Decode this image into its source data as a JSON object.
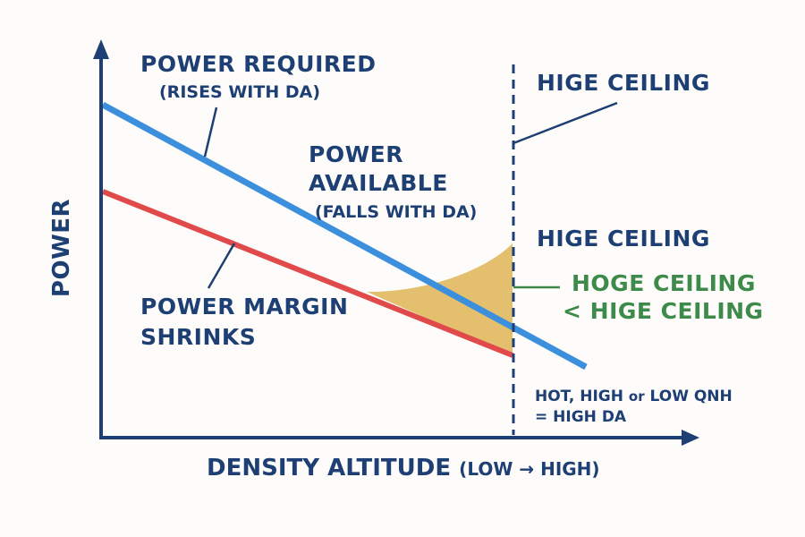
{
  "axes": {
    "y_label": "POWER",
    "x_label": "DENSITY ALTITUDE",
    "x_label_paren": "(LOW → HIGH)"
  },
  "labels": {
    "power_required_title": "POWER REQUIRED",
    "power_required_note": "(RISES WITH DA)",
    "power_available_line1": "POWER",
    "power_available_line2": "AVAILABLE",
    "power_available_note": "(FALLS WITH DA)",
    "power_margin_line1": "POWER MARGIN",
    "power_margin_line2": "SHRINKS",
    "hige_ceiling_top": "HIGE CEILING",
    "hige_ceiling_mid": "HIGE CEILING",
    "hoge_line1": "HOGE CEILING",
    "hoge_line2": "< HIGE CEILING",
    "footnote_part1": "HOT, HIGH ",
    "footnote_or": "or",
    "footnote_part2": " LOW QNH",
    "footnote_line2": "= HIGH DA"
  },
  "colors": {
    "axis": "#1e3f73",
    "power_required_line": "#3b8fdc",
    "power_available_line": "#e04a4a",
    "margin_fill": "#e3bd66",
    "text": "#1e3f73",
    "hoge_text": "#3d8a4a",
    "hoge_leader": "#3d8a4a"
  }
}
